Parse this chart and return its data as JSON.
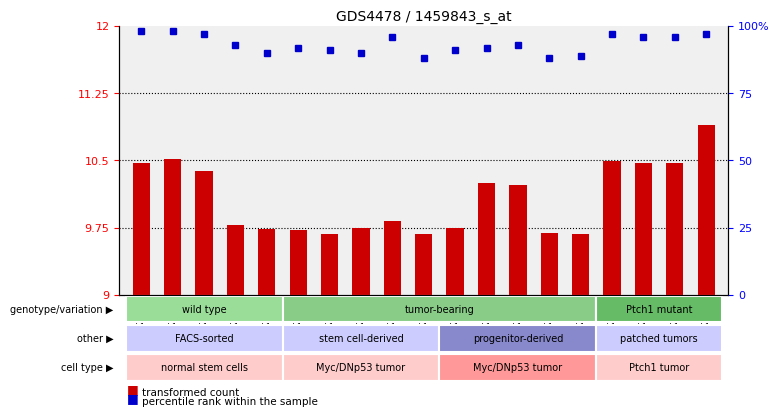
{
  "title": "GDS4478 / 1459843_s_at",
  "samples": [
    "GSM842157",
    "GSM842158",
    "GSM842159",
    "GSM842160",
    "GSM842161",
    "GSM842162",
    "GSM842163",
    "GSM842164",
    "GSM842165",
    "GSM842166",
    "GSM842171",
    "GSM842172",
    "GSM842173",
    "GSM842174",
    "GSM842175",
    "GSM842167",
    "GSM842168",
    "GSM842169",
    "GSM842170"
  ],
  "bar_values": [
    10.47,
    10.51,
    10.38,
    9.78,
    9.73,
    9.72,
    9.68,
    9.74,
    9.82,
    9.68,
    9.74,
    10.25,
    10.23,
    9.69,
    9.68,
    10.49,
    10.47,
    10.47,
    10.89
  ],
  "dot_values": [
    98,
    98,
    97,
    93,
    90,
    92,
    91,
    90,
    96,
    88,
    91,
    92,
    93,
    88,
    89,
    97,
    96,
    96,
    97
  ],
  "ylim_left": [
    9.0,
    12.0
  ],
  "ylim_right": [
    0,
    100
  ],
  "yticks_left": [
    9.0,
    9.75,
    10.5,
    11.25,
    12.0
  ],
  "ytick_labels_left": [
    "9",
    "9.75",
    "10.5",
    "11.25",
    "12"
  ],
  "yticks_right": [
    0,
    25,
    50,
    75,
    100
  ],
  "ytick_labels_right": [
    "0",
    "25",
    "50",
    "75",
    "100%"
  ],
  "hlines": [
    9.75,
    10.5,
    11.25
  ],
  "bar_color": "#cc0000",
  "dot_color": "#0000cc",
  "background_color": "#ffffff",
  "plot_bg_color": "#ffffff",
  "genotype_row": {
    "label": "genotype/variation",
    "groups": [
      {
        "text": "wild type",
        "start": 0,
        "end": 5,
        "color": "#99dd99"
      },
      {
        "text": "tumor-bearing",
        "start": 5,
        "end": 15,
        "color": "#88cc88"
      },
      {
        "text": "Ptch1 mutant",
        "start": 15,
        "end": 19,
        "color": "#66bb66"
      }
    ]
  },
  "other_row": {
    "label": "other",
    "groups": [
      {
        "text": "FACS-sorted",
        "start": 0,
        "end": 5,
        "color": "#ccccff"
      },
      {
        "text": "stem cell-derived",
        "start": 5,
        "end": 10,
        "color": "#ccccff"
      },
      {
        "text": "progenitor-derived",
        "start": 10,
        "end": 15,
        "color": "#8888cc"
      },
      {
        "text": "patched tumors",
        "start": 15,
        "end": 19,
        "color": "#ccccff"
      }
    ]
  },
  "celltype_row": {
    "label": "cell type",
    "groups": [
      {
        "text": "normal stem cells",
        "start": 0,
        "end": 5,
        "color": "#ffcccc"
      },
      {
        "text": "Myc/DNp53 tumor",
        "start": 5,
        "end": 10,
        "color": "#ffcccc"
      },
      {
        "text": "Myc/DNp53 tumor",
        "start": 10,
        "end": 15,
        "color": "#ff9999"
      },
      {
        "text": "Ptch1 tumor",
        "start": 15,
        "end": 19,
        "color": "#ffcccc"
      }
    ]
  },
  "legend_bar_label": "transformed count",
  "legend_dot_label": "percentile rank within the sample"
}
